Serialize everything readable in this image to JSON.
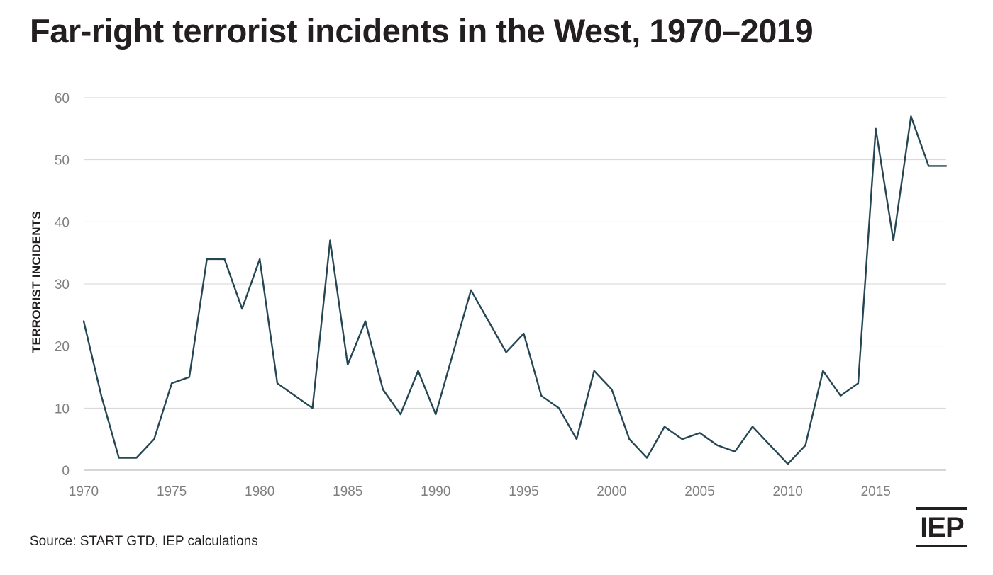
{
  "title": "Far-right terrorist incidents in the West, 1970–2019",
  "source": "Source: START GTD, IEP calculations",
  "logo_text": "IEP",
  "colors": {
    "line": "#254653",
    "grid": "#d4d4d4",
    "text": "#231f20",
    "tick": "#7f7f7f"
  },
  "chart_data": {
    "type": "line",
    "title": "Far-right terrorist incidents in the West, 1970–2019",
    "xlabel": "",
    "ylabel": "TERRORIST INCIDENTS",
    "xlim": [
      1970,
      2019
    ],
    "ylim": [
      0,
      60
    ],
    "x_ticks": [
      1970,
      1975,
      1980,
      1985,
      1990,
      1995,
      2000,
      2005,
      2010,
      2015
    ],
    "y_ticks": [
      0,
      10,
      20,
      30,
      40,
      50,
      60
    ],
    "grid": true,
    "legend": "none",
    "x": [
      1970,
      1971,
      1972,
      1973,
      1974,
      1975,
      1976,
      1977,
      1978,
      1979,
      1980,
      1981,
      1982,
      1983,
      1984,
      1985,
      1986,
      1987,
      1988,
      1989,
      1990,
      1991,
      1992,
      1993,
      1994,
      1995,
      1996,
      1997,
      1998,
      1999,
      2000,
      2001,
      2002,
      2003,
      2004,
      2005,
      2006,
      2007,
      2008,
      2009,
      2010,
      2011,
      2012,
      2013,
      2014,
      2015,
      2016,
      2017,
      2018,
      2019
    ],
    "series": [
      {
        "values": [
          24,
          12,
          2,
          2,
          5,
          14,
          15,
          34,
          34,
          26,
          34,
          14,
          12,
          10,
          37,
          17,
          24,
          13,
          9,
          16,
          9,
          19,
          29,
          24,
          19,
          22,
          12,
          10,
          5,
          16,
          13,
          5,
          2,
          7,
          5,
          6,
          4,
          3,
          7,
          4,
          1,
          4,
          16,
          12,
          14,
          55,
          37,
          57,
          49,
          49
        ]
      }
    ]
  }
}
